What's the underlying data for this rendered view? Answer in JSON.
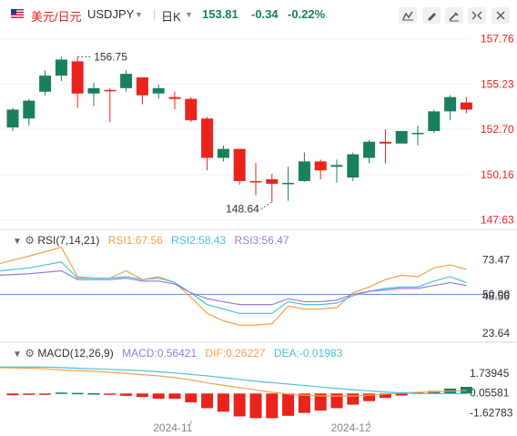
{
  "header": {
    "pair_name": "美元/日元",
    "symbol": "USDJPY",
    "timeframe": "日K",
    "price": "153.81",
    "change": "-0.34",
    "change_pct": "-0.22%",
    "price_color": "#1a7f5f",
    "toolbar_icons": [
      "indicator-settings-icon",
      "drawing-tool-icon",
      "pen-icon",
      "fullscreen-icon",
      "close-icon"
    ]
  },
  "colors": {
    "up": "#1a7f5f",
    "down": "#e8241c",
    "rsi1": "#f5a04a",
    "rsi2": "#4cc3d9",
    "rsi3": "#9b7bd9",
    "dif": "#f5a04a",
    "dea": "#4cc3d9",
    "price_axis": "#e8241c",
    "sub_axis": "#333333"
  },
  "rsi_pane": {
    "name": "RSI(7,14,21)",
    "rsi1_label": "RSI1:67.56",
    "rsi2_label": "RSI2:58.43",
    "rsi3_label": "RSI3:56.47"
  },
  "macd_pane": {
    "name": "MACD(12,26,9)",
    "macd_label": "MACD:0.56421",
    "dif_label": "DIF:0.26227",
    "dea_label": "DEA:-0.01983"
  },
  "chart_data": [
    {
      "type": "candlestick",
      "title": "USDJPY",
      "ylim": [
        147.2,
        158.2
      ],
      "y_ticks": [
        "157.76",
        "155.23",
        "152.70",
        "150.16",
        "147.63"
      ],
      "x_ticks": [
        "2024-11",
        "2024-12"
      ],
      "annotations": [
        {
          "text": "156.75",
          "value": 156.75,
          "index": 4
        },
        {
          "text": "148.64",
          "value": 148.64,
          "index": 16
        }
      ],
      "candles": [
        {
          "o": 152.8,
          "h": 153.9,
          "l": 152.6,
          "c": 153.8
        },
        {
          "o": 153.3,
          "h": 154.4,
          "l": 152.9,
          "c": 154.3
        },
        {
          "o": 154.8,
          "h": 156.0,
          "l": 154.6,
          "c": 155.7
        },
        {
          "o": 155.7,
          "h": 156.75,
          "l": 155.4,
          "c": 156.6
        },
        {
          "o": 156.5,
          "h": 156.75,
          "l": 153.9,
          "c": 154.7
        },
        {
          "o": 154.7,
          "h": 155.3,
          "l": 154.0,
          "c": 155.0
        },
        {
          "o": 154.9,
          "h": 155.0,
          "l": 153.1,
          "c": 154.85
        },
        {
          "o": 155.0,
          "h": 156.0,
          "l": 154.8,
          "c": 155.8
        },
        {
          "o": 155.6,
          "h": 155.6,
          "l": 154.1,
          "c": 154.6
        },
        {
          "o": 154.7,
          "h": 155.2,
          "l": 154.4,
          "c": 155.0
        },
        {
          "o": 154.5,
          "h": 154.8,
          "l": 153.8,
          "c": 154.4
        },
        {
          "o": 154.4,
          "h": 154.5,
          "l": 153.1,
          "c": 153.2
        },
        {
          "o": 153.3,
          "h": 153.4,
          "l": 150.4,
          "c": 151.1
        },
        {
          "o": 151.1,
          "h": 151.8,
          "l": 150.9,
          "c": 151.6
        },
        {
          "o": 151.6,
          "h": 151.6,
          "l": 149.6,
          "c": 149.8
        },
        {
          "o": 149.8,
          "h": 150.8,
          "l": 149.0,
          "c": 149.75
        },
        {
          "o": 149.9,
          "h": 150.2,
          "l": 148.64,
          "c": 149.65
        },
        {
          "o": 149.7,
          "h": 150.6,
          "l": 148.7,
          "c": 149.7
        },
        {
          "o": 149.8,
          "h": 151.4,
          "l": 149.75,
          "c": 150.9
        },
        {
          "o": 150.9,
          "h": 151.0,
          "l": 149.9,
          "c": 150.4
        },
        {
          "o": 150.6,
          "h": 151.0,
          "l": 149.7,
          "c": 150.7
        },
        {
          "o": 150.0,
          "h": 151.4,
          "l": 149.8,
          "c": 151.3
        },
        {
          "o": 151.1,
          "h": 152.1,
          "l": 150.8,
          "c": 152.0
        },
        {
          "o": 152.0,
          "h": 152.7,
          "l": 150.8,
          "c": 151.9
        },
        {
          "o": 151.9,
          "h": 152.5,
          "l": 152.0,
          "c": 152.6
        },
        {
          "o": 152.5,
          "h": 152.9,
          "l": 151.8,
          "c": 152.5
        },
        {
          "o": 152.6,
          "h": 153.8,
          "l": 152.5,
          "c": 153.7
        },
        {
          "o": 153.7,
          "h": 154.6,
          "l": 153.2,
          "c": 154.5
        },
        {
          "o": 154.2,
          "h": 154.5,
          "l": 153.6,
          "c": 153.8
        }
      ]
    },
    {
      "type": "line",
      "title": "RSI(7,14,21)",
      "ylim": [
        18,
        88
      ],
      "y_ticks": [
        "73.47",
        "50.00",
        "48.56",
        "23.64"
      ],
      "reference_line": 50.0,
      "series": [
        {
          "name": "RSI1",
          "values": [
            71,
            76,
            79,
            82,
            62,
            61,
            61,
            66,
            60,
            62,
            58,
            48,
            37,
            32,
            29,
            29,
            30,
            42,
            40,
            40,
            41,
            51,
            55,
            60,
            63,
            62,
            68,
            70,
            67
          ]
        },
        {
          "name": "RSI2",
          "values": [
            66,
            68,
            70,
            72,
            61,
            61,
            61,
            62,
            60,
            61,
            58,
            51,
            43,
            40,
            37,
            37,
            37,
            45,
            43,
            43,
            44,
            49,
            52,
            54,
            55,
            55,
            59,
            62,
            58
          ]
        },
        {
          "name": "RSI3",
          "values": [
            63,
            64,
            65,
            66,
            60,
            60,
            60,
            61,
            59,
            59,
            57,
            51,
            47,
            45,
            43,
            43,
            43,
            47,
            45,
            45,
            46,
            50,
            52,
            53,
            54,
            54,
            56,
            58,
            56
          ]
        }
      ]
    },
    {
      "type": "bar",
      "title": "MACD(12,26,9)",
      "ylim": [
        -2.3,
        2.5
      ],
      "y_ticks": [
        "1.73945",
        "0.05581",
        "-1.62783"
      ],
      "series": [
        {
          "name": "MACD",
          "values": [
            -0.15,
            -0.1,
            -0.06,
            0.08,
            0.05,
            0.02,
            -0.1,
            -0.2,
            -0.3,
            -0.45,
            -0.45,
            -0.75,
            -1.25,
            -1.55,
            -1.95,
            -2.1,
            -2.1,
            -1.9,
            -1.65,
            -1.45,
            -1.25,
            -0.95,
            -0.65,
            -0.38,
            -0.18,
            0.08,
            0.22,
            0.42,
            0.56421
          ]
        },
        {
          "name": "DIF",
          "values": [
            2.2,
            2.15,
            2.1,
            2.0,
            1.95,
            1.9,
            1.8,
            1.7,
            1.6,
            1.5,
            1.35,
            1.15,
            0.9,
            0.7,
            0.5,
            0.3,
            0.1,
            -0.05,
            -0.15,
            -0.2,
            -0.22,
            -0.22,
            -0.15,
            -0.05,
            0.05,
            0.1,
            0.15,
            0.2,
            0.26227
          ]
        },
        {
          "name": "DEA",
          "values": [
            2.25,
            2.25,
            2.25,
            2.2,
            2.15,
            2.1,
            2.05,
            2.0,
            1.95,
            1.85,
            1.75,
            1.62,
            1.5,
            1.35,
            1.2,
            1.05,
            0.92,
            0.8,
            0.68,
            0.55,
            0.43,
            0.32,
            0.22,
            0.12,
            0.05,
            0.0,
            -0.01,
            -0.015,
            -0.01983
          ]
        }
      ]
    }
  ]
}
